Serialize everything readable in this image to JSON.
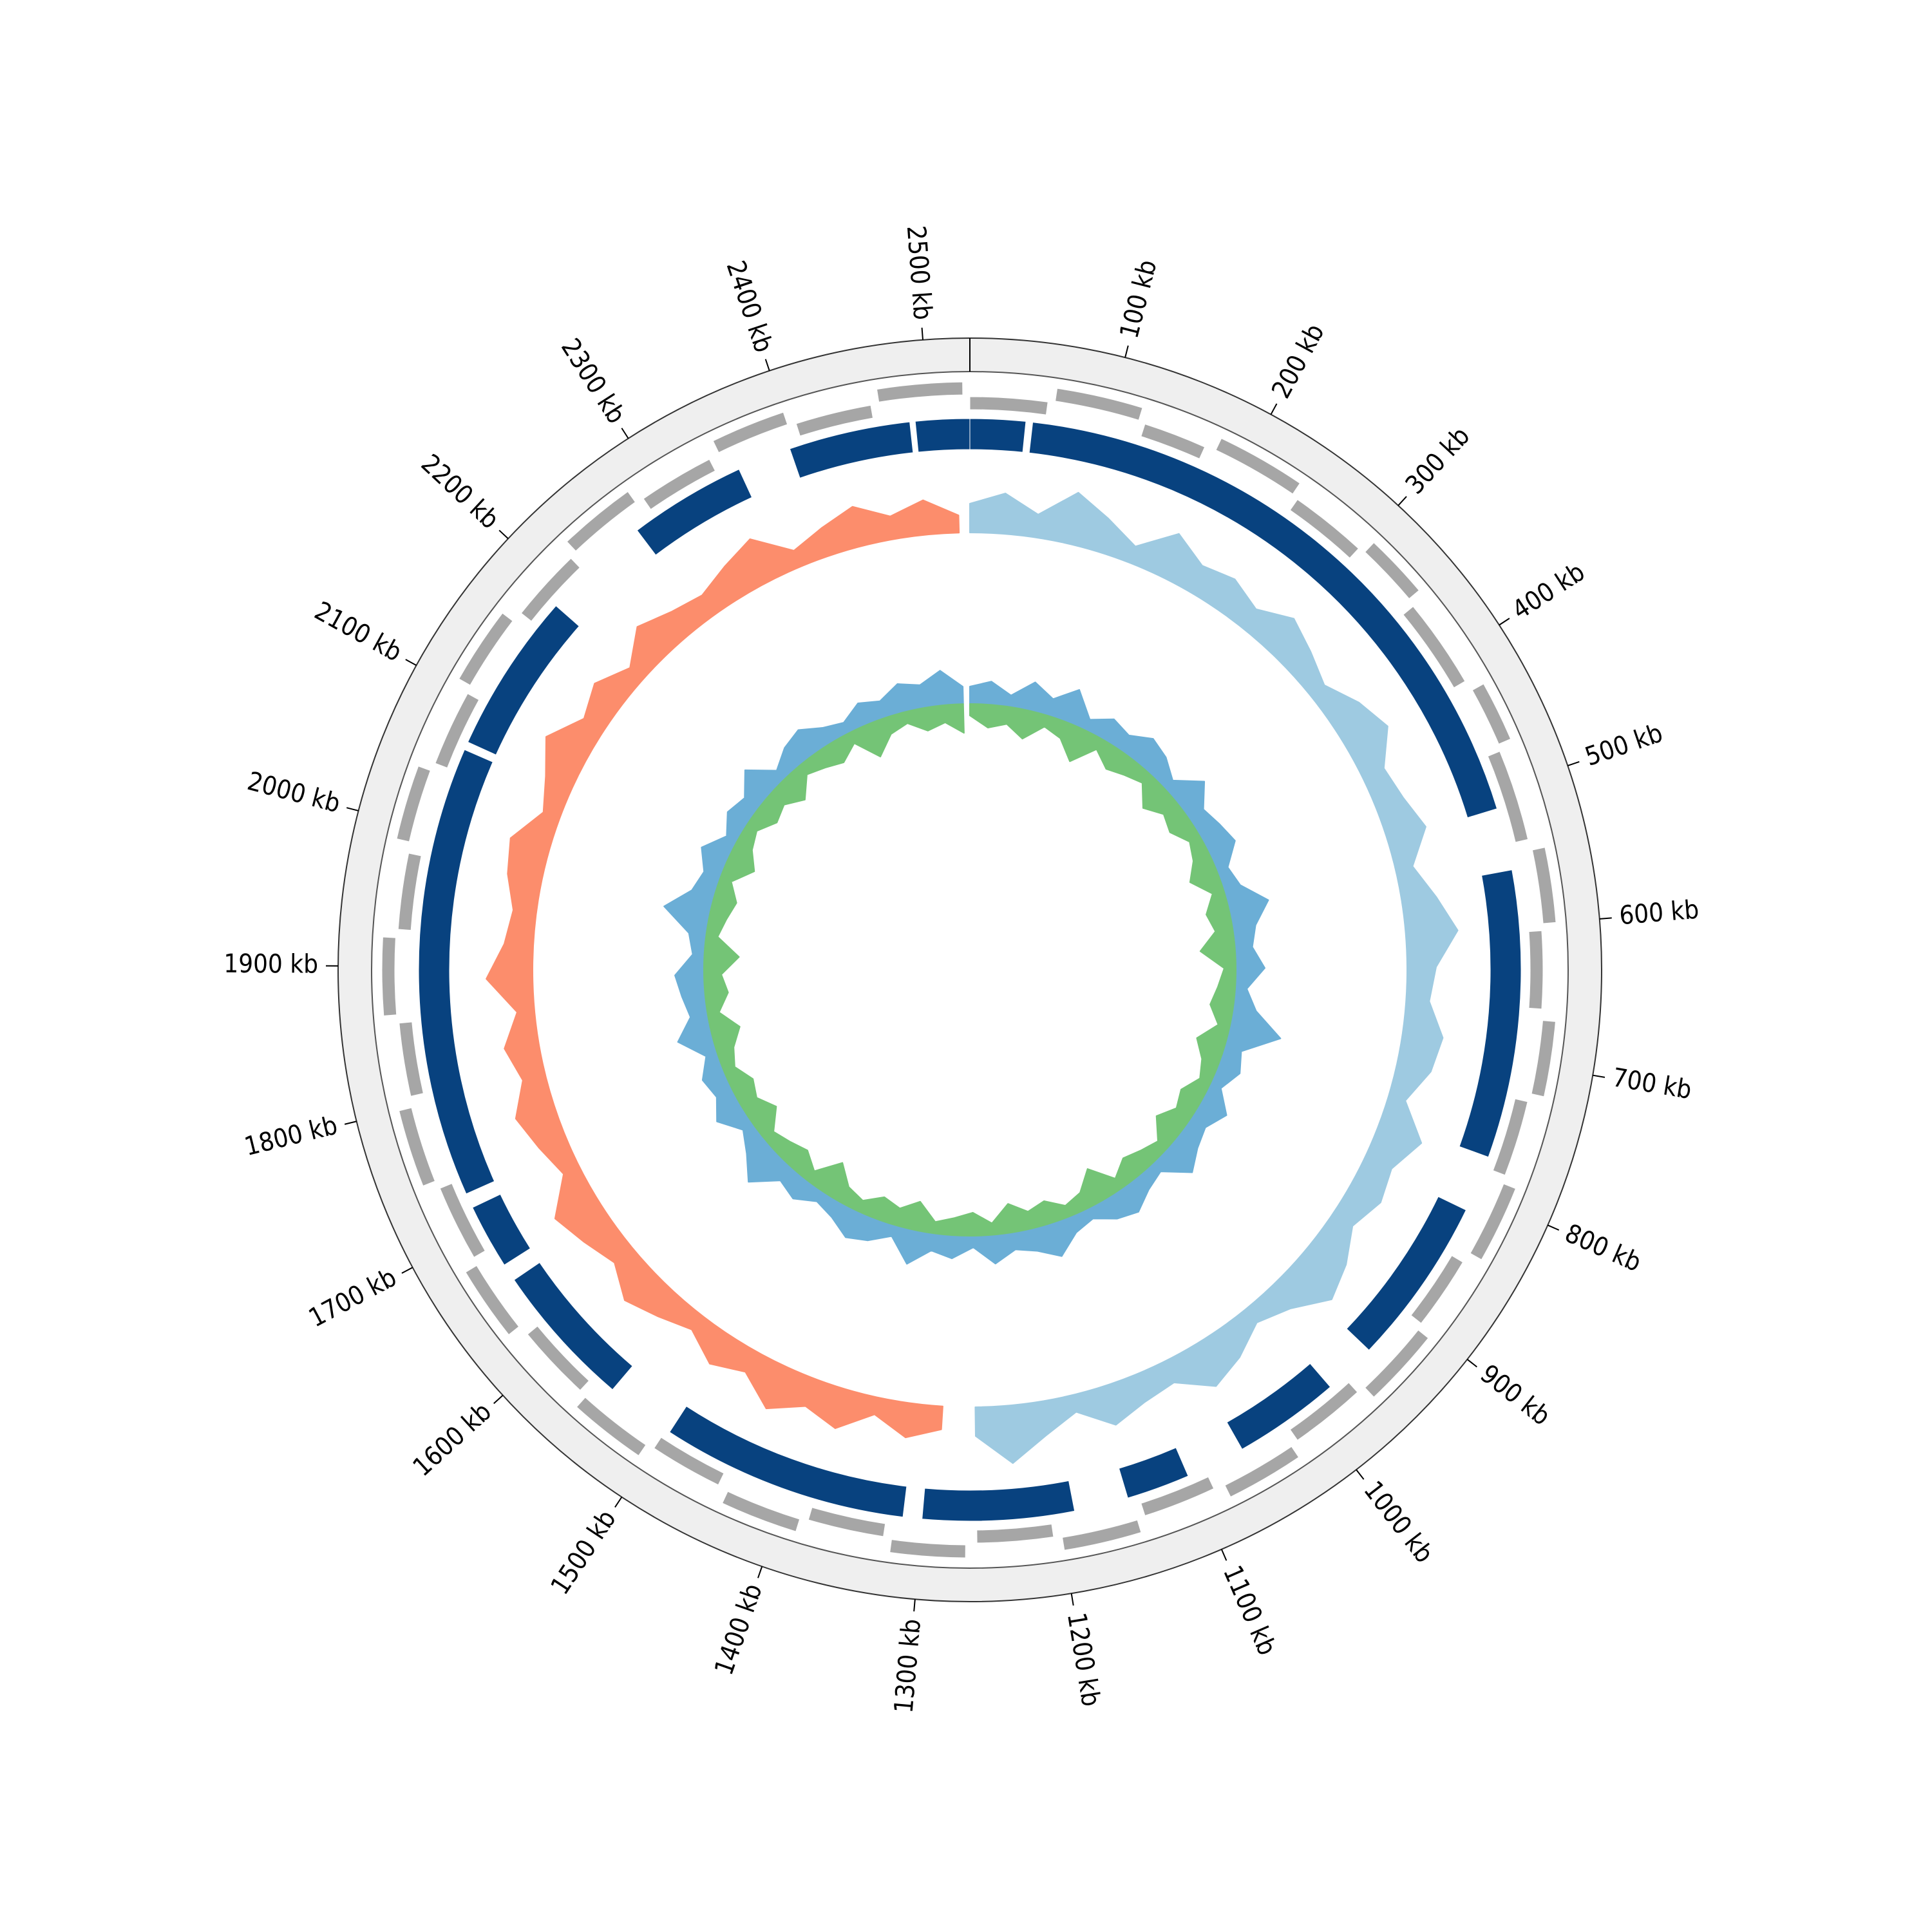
{
  "chart_data": {
    "type": "circular-genome",
    "xlim": [
      0,
      2530
    ],
    "xticks": [
      {
        "value": 100,
        "label": "100 kb"
      },
      {
        "value": 200,
        "label": "200 kb"
      },
      {
        "value": 300,
        "label": "300 kb"
      },
      {
        "value": 400,
        "label": "400 kb"
      },
      {
        "value": 500,
        "label": "500 kb"
      },
      {
        "value": 600,
        "label": "600 kb"
      },
      {
        "value": 700,
        "label": "700 kb"
      },
      {
        "value": 800,
        "label": "800 kb"
      },
      {
        "value": 900,
        "label": "900 kb"
      },
      {
        "value": 1000,
        "label": "1000 kb"
      },
      {
        "value": 1100,
        "label": "1100 kb"
      },
      {
        "value": 1200,
        "label": "1200 kb"
      },
      {
        "value": 1300,
        "label": "1300 kb"
      },
      {
        "value": 1400,
        "label": "1400 kb"
      },
      {
        "value": 1500,
        "label": "1500 kb"
      },
      {
        "value": 1600,
        "label": "1600 kb"
      },
      {
        "value": 1700,
        "label": "1700 kb"
      },
      {
        "value": 1800,
        "label": "1800 kb"
      },
      {
        "value": 1900,
        "label": "1900 kb"
      },
      {
        "value": 2000,
        "label": "2000 kb"
      },
      {
        "value": 2100,
        "label": "2100 kb"
      },
      {
        "value": 2200,
        "label": "2200 kb"
      },
      {
        "value": 2300,
        "label": "2300 kb"
      },
      {
        "value": 2400,
        "label": "2400 kb"
      },
      {
        "value": 2500,
        "label": "2500 kb"
      }
    ],
    "features": [
      {
        "color": "#a6a6a6",
        "segments": [
          [
            0,
            55
          ],
          [
            60,
            120
          ],
          [
            125,
            170
          ],
          [
            178,
            240
          ],
          [
            245,
            300
          ],
          [
            305,
            350
          ],
          [
            356,
            420
          ],
          [
            428,
            470
          ],
          [
            475,
            540
          ],
          [
            548,
            600
          ],
          [
            605,
            660
          ],
          [
            668,
            720
          ],
          [
            726,
            780
          ],
          [
            786,
            840
          ],
          [
            848,
            900
          ],
          [
            905,
            960
          ],
          [
            966,
            1020
          ],
          [
            1026,
            1080
          ],
          [
            1088,
            1140
          ],
          [
            1146,
            1200
          ],
          [
            1206,
            1260
          ],
          [
            1268,
            1320
          ],
          [
            1326,
            1380
          ],
          [
            1386,
            1440
          ],
          [
            1448,
            1500
          ],
          [
            1506,
            1560
          ],
          [
            1566,
            1620
          ],
          [
            1628,
            1680
          ],
          [
            1686,
            1740
          ],
          [
            1746,
            1800
          ],
          [
            1808,
            1860
          ],
          [
            1866,
            1920
          ],
          [
            1926,
            1980
          ],
          [
            1988,
            2040
          ],
          [
            2046,
            2100
          ],
          [
            2106,
            2160
          ],
          [
            2168,
            2220
          ],
          [
            2226,
            2280
          ],
          [
            2286,
            2340
          ],
          [
            2348,
            2400
          ],
          [
            2406,
            2460
          ],
          [
            2466,
            2525
          ]
        ]
      },
      {
        "color": "#08427f",
        "segments": [
          [
            0,
            41
          ],
          [
            46,
            513
          ],
          [
            559,
            772
          ],
          [
            814,
            939
          ],
          [
            978,
            1057
          ],
          [
            1101,
            1148
          ],
          [
            1188,
            1300
          ],
          [
            1314,
            1497
          ],
          [
            1549,
            1657
          ],
          [
            1670,
            1718
          ],
          [
            1729,
            2063
          ],
          [
            2069,
            2188
          ],
          [
            2269,
            2356
          ],
          [
            2396,
            2486
          ],
          [
            2490,
            2530
          ]
        ]
      }
    ],
    "tracks": [
      {
        "series": [
          {
            "color": "#9ecae1",
            "x": [
              0,
              30,
              60,
              90,
              120,
              150,
              180,
              210,
              240,
              270,
              300,
              330,
              360,
              390,
              420,
              450,
              480,
              510,
              540,
              570,
              600,
              630,
              660,
              690,
              720,
              750,
              780,
              810,
              840,
              870,
              900,
              930,
              960,
              990,
              1020,
              1050,
              1080,
              1110,
              1140,
              1170,
              1200,
              1230,
              1260
            ],
            "values": [
              5,
              7,
              4,
              9,
              6,
              3,
              8,
              5,
              6,
              4,
              7,
              5,
              3,
              6,
              8,
              4,
              5,
              7,
              3,
              6,
              9,
              5,
              4,
              7,
              6,
              3,
              8,
              5,
              6,
              4,
              7,
              9,
              5,
              3,
              6,
              8,
              4,
              5,
              7,
              3,
              6,
              10,
              5
            ]
          },
          {
            "color": "#fc8d6c",
            "x": [
              1290,
              1320,
              1350,
              1380,
              1410,
              1440,
              1470,
              1500,
              1530,
              1560,
              1590,
              1620,
              1650,
              1680,
              1710,
              1740,
              1770,
              1800,
              1830,
              1860,
              1890,
              1920,
              1950,
              1980,
              2010,
              2040,
              2070,
              2100,
              2130,
              2160,
              2190,
              2220,
              2250,
              2280,
              2310,
              2340,
              2370,
              2400,
              2430,
              2460,
              2490,
              2520
            ],
            "values": [
              4,
              6,
              3,
              7,
              5,
              8,
              4,
              6,
              3,
              5,
              7,
              4,
              6,
              8,
              3,
              5,
              7,
              4,
              6,
              3,
              8,
              5,
              4,
              6,
              7,
              3,
              5,
              8,
              4,
              6,
              3,
              7,
              5,
              4,
              6,
              8,
              3,
              5,
              7,
              4,
              6,
              3
            ]
          }
        ]
      },
      {
        "series": [
          {
            "color": "#6baed6",
            "x": [
              0,
              30,
              60,
              90,
              120,
              150,
              180,
              210,
              240,
              270,
              300,
              330,
              360,
              390,
              420,
              450,
              480,
              510,
              540,
              570,
              600,
              630,
              660,
              690,
              720,
              750,
              780,
              810,
              840,
              870,
              900,
              930,
              960,
              990,
              1020,
              1050,
              1080,
              1110,
              1140,
              1170,
              1200,
              1230,
              1260,
              1290,
              1320,
              1350,
              1380,
              1410,
              1440,
              1470,
              1500,
              1530,
              1560,
              1590,
              1620,
              1650,
              1680,
              1710,
              1740,
              1770,
              1800,
              1830,
              1860,
              1890,
              1920,
              1950,
              1980,
              2010,
              2040,
              2070,
              2100,
              2130,
              2160,
              2190,
              2220,
              2250,
              2280,
              2310,
              2340,
              2370,
              2400,
              2430,
              2460,
              2490,
              2520
            ],
            "values": [
              3,
              4,
              2,
              5,
              3,
              6,
              2,
              4,
              3,
              5,
              4,
              2,
              6,
              3,
              4,
              5,
              2,
              3,
              7,
              4,
              3,
              5,
              2,
              4,
              9,
              3,
              4,
              2,
              5,
              3,
              4,
              6,
              2,
              3,
              5,
              4,
              2,
              3,
              6,
              4,
              3,
              5,
              2,
              4,
              3,
              6,
              2,
              4,
              5,
              3,
              2,
              4,
              3,
              7,
              4,
              2,
              5,
              3,
              4,
              2,
              6,
              3,
              4,
              5,
              2,
              3,
              8,
              4,
              3,
              5,
              2,
              4,
              3,
              6,
              2,
              4,
              5,
              3,
              2,
              4,
              3,
              5,
              4,
              6,
              3
            ]
          },
          {
            "color": "#74c476",
            "x": [
              0,
              30,
              60,
              90,
              120,
              150,
              180,
              210,
              240,
              270,
              300,
              330,
              360,
              390,
              420,
              450,
              480,
              510,
              540,
              570,
              600,
              630,
              660,
              690,
              720,
              750,
              780,
              810,
              840,
              870,
              900,
              930,
              960,
              990,
              1020,
              1050,
              1080,
              1110,
              1140,
              1170,
              1200,
              1230,
              1260,
              1290,
              1320,
              1350,
              1380,
              1410,
              1440,
              1470,
              1500,
              1530,
              1560,
              1590,
              1620,
              1650,
              1680,
              1710,
              1740,
              1770,
              1800,
              1830,
              1860,
              1890,
              1920,
              1950,
              1980,
              2010,
              2040,
              2070,
              2100,
              2130,
              2160,
              2190,
              2220,
              2250,
              2280,
              2310,
              2340,
              2370,
              2400,
              2430,
              2460,
              2490,
              2520
            ],
            "values": [
              -2,
              -4,
              -3,
              -5,
              -2,
              -3,
              -6,
              -2,
              -4,
              -3,
              -2,
              -5,
              -3,
              -4,
              -2,
              -3,
              -5,
              -2,
              -4,
              -3,
              -6,
              -2,
              -3,
              -4,
              -2,
              -5,
              -3,
              -2,
              -4,
              -3,
              -5,
              -2,
              -3,
              -4,
              -2,
              -6,
              -3,
              -2,
              -4,
              -3,
              -5,
              -2,
              -4,
              -3,
              -2,
              -5,
              -3,
              -4,
              -2,
              -3,
              -6,
              -2,
              -4,
              -3,
              -2,
              -5,
              -3,
              -4,
              -2,
              -3,
              -5,
              -2,
              -4,
              -3,
              -6,
              -2,
              -3,
              -4,
              -2,
              -5,
              -3,
              -2,
              -4,
              -3,
              -5,
              -2,
              -3,
              -4,
              -2,
              -6,
              -3,
              -2,
              -4,
              -3,
              -5
            ]
          }
        ]
      }
    ]
  }
}
